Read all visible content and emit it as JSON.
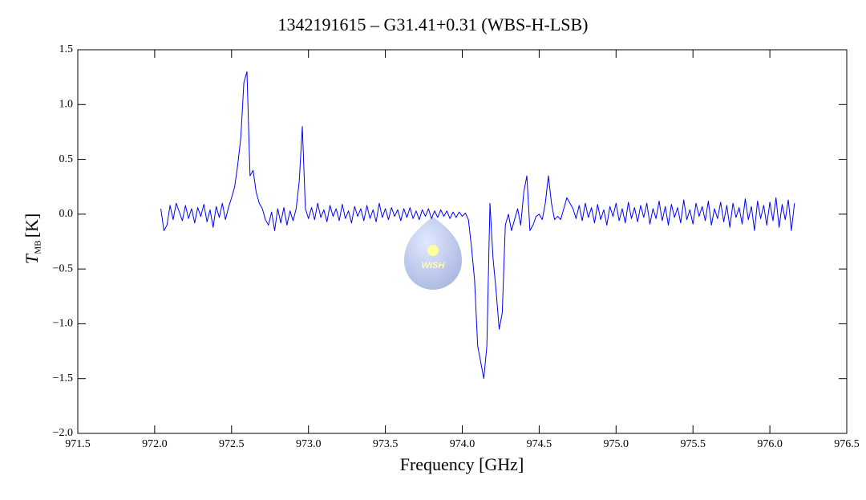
{
  "chart_data": {
    "type": "line",
    "title": "1342191615 – G31.41+0.31 (WBS-H-LSB)",
    "x_label": "Frequency [GHz]",
    "y_label": {
      "symbol": "T",
      "subscript": "MB",
      "unit": "[K]"
    },
    "watermark": "WISH",
    "xlim": [
      971.5,
      976.5
    ],
    "xticks": [
      971.5,
      {
        "value": 972,
        "label": "972.0"
      },
      972.5,
      {
        "value": 973,
        "label": "973.0"
      },
      973.5,
      {
        "value": 974,
        "label": "974.0"
      },
      974.5,
      {
        "value": 975,
        "label": "975.0"
      },
      975.5,
      {
        "value": 976,
        "label": "976.0"
      },
      976.5
    ],
    "ylim": [
      -2.0,
      1.5
    ],
    "yticks": [
      {
        "value": -2,
        "label": "−2.0"
      },
      {
        "value": -1.5,
        "label": "−1.5"
      },
      {
        "value": -1,
        "label": "−1.0"
      },
      {
        "value": -0.5,
        "label": "−0.5"
      },
      {
        "value": 0,
        "label": "0.0"
      },
      {
        "value": 0.5,
        "label": "0.5"
      },
      {
        "value": 1,
        "label": "1.0"
      },
      {
        "value": 1.5,
        "label": "1.5"
      }
    ],
    "x": [
      972.04,
      972.06,
      972.08,
      972.1,
      972.12,
      972.14,
      972.16,
      972.18,
      972.2,
      972.22,
      972.24,
      972.26,
      972.28,
      972.3,
      972.32,
      972.34,
      972.36,
      972.38,
      972.4,
      972.42,
      972.44,
      972.46,
      972.48,
      972.5,
      972.52,
      972.54,
      972.56,
      972.58,
      972.6,
      972.62,
      972.64,
      972.66,
      972.68,
      972.7,
      972.72,
      972.74,
      972.76,
      972.78,
      972.8,
      972.82,
      972.84,
      972.86,
      972.88,
      972.9,
      972.92,
      972.94,
      972.96,
      972.98,
      973.0,
      973.02,
      973.04,
      973.06,
      973.08,
      973.1,
      973.12,
      973.14,
      973.16,
      973.18,
      973.2,
      973.22,
      973.24,
      973.26,
      973.28,
      973.3,
      973.32,
      973.34,
      973.36,
      973.38,
      973.4,
      973.42,
      973.44,
      973.46,
      973.48,
      973.5,
      973.52,
      973.54,
      973.56,
      973.58,
      973.6,
      973.62,
      973.64,
      973.66,
      973.68,
      973.7,
      973.72,
      973.74,
      973.76,
      973.78,
      973.8,
      973.82,
      973.84,
      973.86,
      973.88,
      973.9,
      973.92,
      973.94,
      973.96,
      973.98,
      974.0,
      974.02,
      974.04,
      974.06,
      974.08,
      974.1,
      974.12,
      974.14,
      974.16,
      974.18,
      974.2,
      974.22,
      974.24,
      974.26,
      974.28,
      974.3,
      974.32,
      974.34,
      974.36,
      974.38,
      974.4,
      974.42,
      974.44,
      974.46,
      974.48,
      974.5,
      974.52,
      974.54,
      974.56,
      974.58,
      974.6,
      974.62,
      974.64,
      974.66,
      974.68,
      974.7,
      974.72,
      974.74,
      974.76,
      974.78,
      974.8,
      974.82,
      974.84,
      974.86,
      974.88,
      974.9,
      974.92,
      974.94,
      974.96,
      974.98,
      975.0,
      975.02,
      975.04,
      975.06,
      975.08,
      975.1,
      975.12,
      975.14,
      975.16,
      975.18,
      975.2,
      975.22,
      975.24,
      975.26,
      975.28,
      975.3,
      975.32,
      975.34,
      975.36,
      975.38,
      975.4,
      975.42,
      975.44,
      975.46,
      975.48,
      975.5,
      975.52,
      975.54,
      975.56,
      975.58,
      975.6,
      975.62,
      975.64,
      975.66,
      975.68,
      975.7,
      975.72,
      975.74,
      975.76,
      975.78,
      975.8,
      975.82,
      975.84,
      975.86,
      975.88,
      975.9,
      975.92,
      975.94,
      975.96,
      975.98,
      976.0,
      976.02,
      976.04,
      976.06,
      976.08,
      976.1,
      976.12,
      976.14,
      976.16
    ],
    "series": [
      {
        "color": "#0000ff",
        "values": [
          0.05,
          -0.15,
          -0.1,
          0.08,
          -0.05,
          0.1,
          0.02,
          -0.06,
          0.08,
          -0.04,
          0.05,
          -0.08,
          0.06,
          -0.02,
          0.09,
          -0.07,
          0.04,
          -0.12,
          0.07,
          -0.03,
          0.1,
          -0.05,
          0.06,
          0.15,
          0.25,
          0.45,
          0.7,
          1.2,
          1.3,
          0.35,
          0.4,
          0.2,
          0.1,
          0.05,
          -0.05,
          -0.1,
          0.02,
          -0.15,
          0.05,
          -0.08,
          0.06,
          -0.1,
          0.03,
          -0.06,
          0.05,
          0.3,
          0.8,
          0.05,
          -0.04,
          0.06,
          -0.05,
          0.1,
          -0.03,
          0.04,
          -0.07,
          0.08,
          -0.02,
          0.05,
          -0.06,
          0.09,
          -0.04,
          0.03,
          -0.08,
          0.07,
          -0.02,
          0.05,
          -0.06,
          0.08,
          -0.04,
          0.04,
          -0.07,
          0.1,
          -0.03,
          0.05,
          -0.05,
          0.06,
          -0.02,
          0.04,
          -0.06,
          0.05,
          -0.03,
          0.06,
          -0.04,
          0.03,
          -0.05,
          0.04,
          -0.02,
          0.05,
          -0.04,
          0.03,
          -0.03,
          0.04,
          -0.02,
          0.03,
          -0.04,
          0.02,
          -0.03,
          0.02,
          -0.02,
          0.01,
          -0.05,
          -0.3,
          -0.6,
          -1.2,
          -1.35,
          -1.5,
          -1.2,
          0.1,
          -0.4,
          -0.7,
          -1.05,
          -0.9,
          -0.1,
          0.0,
          -0.15,
          -0.05,
          0.05,
          -0.1,
          0.2,
          0.35,
          -0.15,
          -0.1,
          -0.02,
          0.0,
          -0.05,
          0.1,
          0.35,
          0.1,
          -0.05,
          -0.02,
          -0.05,
          0.05,
          0.15,
          0.1,
          0.05,
          -0.04,
          0.08,
          -0.06,
          0.1,
          -0.03,
          0.06,
          -0.08,
          0.09,
          -0.05,
          0.04,
          -0.1,
          0.07,
          -0.02,
          0.1,
          -0.06,
          0.05,
          -0.08,
          0.11,
          -0.04,
          0.06,
          -0.07,
          0.08,
          -0.03,
          0.1,
          -0.09,
          0.05,
          -0.04,
          0.12,
          -0.06,
          0.07,
          -0.1,
          0.09,
          -0.03,
          0.06,
          -0.08,
          0.13,
          -0.05,
          0.04,
          -0.09,
          0.1,
          -0.02,
          0.07,
          -0.06,
          0.12,
          -0.1,
          0.05,
          -0.04,
          0.11,
          -0.07,
          0.08,
          -0.12,
          0.1,
          -0.03,
          0.06,
          -0.09,
          0.14,
          -0.05,
          0.07,
          -0.15,
          0.12,
          -0.04,
          0.08,
          -0.1,
          0.11,
          -0.06,
          0.15,
          -0.12,
          0.09,
          -0.05,
          0.13,
          -0.15,
          0.1
        ]
      }
    ]
  }
}
